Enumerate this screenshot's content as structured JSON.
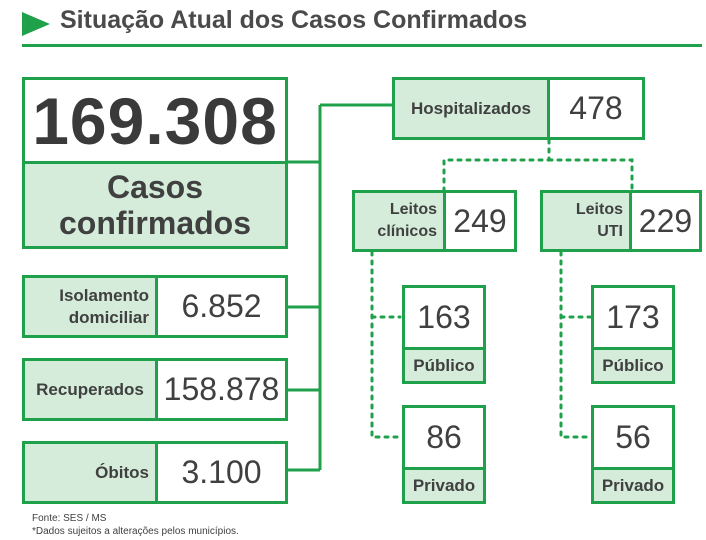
{
  "header": {
    "title": "Situação Atual dos Casos Confirmados"
  },
  "totals": {
    "confirmed_value": "169.308",
    "confirmed_label": "Casos confirmados"
  },
  "stats": {
    "isolation": {
      "label": "Isolamento domiciliar",
      "value": "6.852"
    },
    "recovered": {
      "label": "Recuperados",
      "value": "158.878"
    },
    "deaths": {
      "label": "Óbitos",
      "value": "3.100"
    }
  },
  "hospital": {
    "label": "Hospitalizados",
    "value": "478",
    "clinical": {
      "label": "Leitos clínicos",
      "value": "249",
      "public": {
        "value": "163",
        "label": "Público"
      },
      "private": {
        "value": "86",
        "label": "Privado"
      }
    },
    "icu": {
      "label": "Leitos UTI",
      "value": "229",
      "public": {
        "value": "173",
        "label": "Público"
      },
      "private": {
        "value": "56",
        "label": "Privado"
      }
    }
  },
  "footer": {
    "source": "Fonte: SES / MS",
    "note": "*Dados sujeitos a alterações pelos municípios."
  },
  "colors": {
    "accent": "#1fa04a",
    "fill": "#d4ecd9",
    "text": "#404040"
  }
}
